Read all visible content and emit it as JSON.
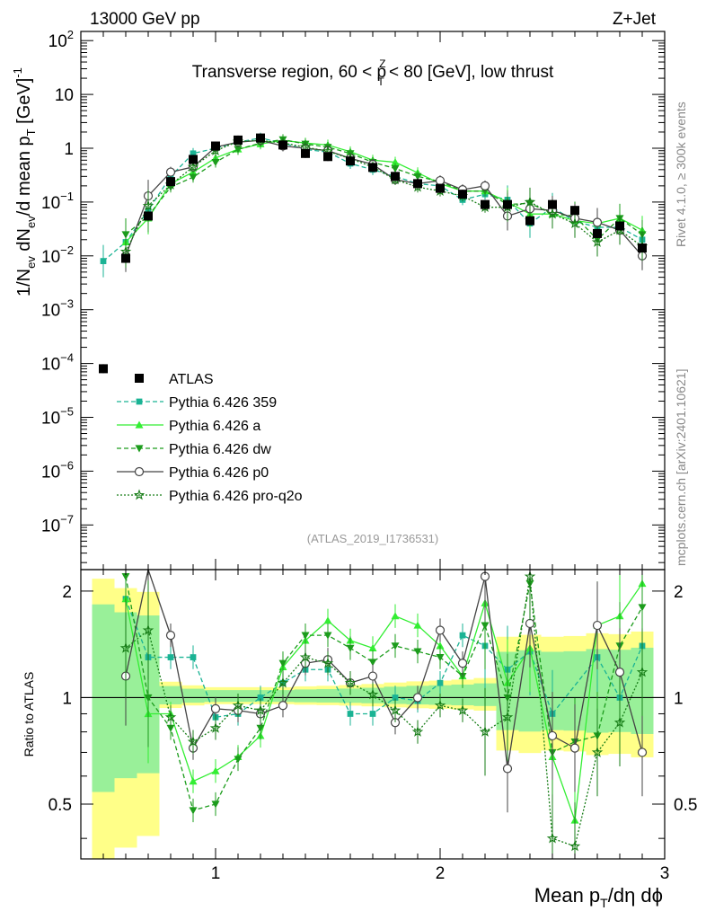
{
  "header": {
    "left": "13000 GeV pp",
    "right": "Z+Jet"
  },
  "chart_data": {
    "type": "line",
    "title": "Transverse region, 60 < p_T^Z < 80 [GeV], low thrust",
    "title_parts": {
      "a": "Transverse region, 60 < p",
      "sup": "Z",
      "sub": "T",
      "b": " < 80 [GeV], low thrust"
    },
    "analysis_id": "(ATLAS_2019_I1736531)",
    "side_label_top": "Rivet 4.1.0, ≥ 300k events",
    "side_label_bottom": "mcplots.cern.ch [arXiv:2401.10621]",
    "xlabel": "Mean p_T/dη dϕ",
    "xlabel_parts": {
      "a": "Mean p",
      "sub": "T",
      "b": "/dη dϕ"
    },
    "ylabel": "1/N_ev dN_ev/d mean p_T [GeV]^-1",
    "ylabel_parts": {
      "a": "1/N",
      "s1": "ev",
      "b": " dN",
      "s2": "ev",
      "c": "/d mean p",
      "s3": "T",
      "d": " [GeV]",
      "sup": "-1"
    },
    "ratio_ylabel": "Ratio to ATLAS",
    "xlim": [
      0.4,
      3.0
    ],
    "ylim_main": [
      2e-08,
      200
    ],
    "ylim_ratio": [
      0.35,
      2.3
    ],
    "x_ticks": [
      1,
      2,
      3
    ],
    "y_ticks": [
      "10^-7",
      "10^-6",
      "10^-5",
      "10^-4",
      "10^-3",
      "10^-2",
      "10^-1",
      "1",
      "10",
      "10^2"
    ],
    "ratio_ticks": [
      "0.5",
      "1",
      "2"
    ],
    "x": [
      0.5,
      0.6,
      0.7,
      0.8,
      0.9,
      1.0,
      1.1,
      1.2,
      1.3,
      1.4,
      1.5,
      1.6,
      1.7,
      1.8,
      1.9,
      2.0,
      2.1,
      2.2,
      2.3,
      2.4,
      2.5,
      2.6,
      2.7,
      2.8,
      2.9
    ],
    "data": {
      "name": "ATLAS",
      "values": [
        8e-05,
        0.009,
        0.055,
        0.24,
        0.62,
        1.1,
        1.42,
        1.55,
        1.15,
        0.8,
        0.7,
        0.58,
        0.44,
        0.3,
        0.22,
        0.18,
        0.14,
        0.09,
        0.09,
        0.045,
        0.09,
        0.07,
        0.026,
        0.036,
        0.014
      ]
    },
    "series": [
      {
        "name": "Pythia 6.426 359",
        "color": "#1ab394",
        "style": "dashed",
        "marker": "square",
        "values": [
          0.008,
          0.018,
          0.07,
          0.3,
          0.8,
          1.0,
          1.3,
          1.55,
          1.25,
          0.95,
          0.85,
          0.52,
          0.4,
          0.3,
          0.22,
          0.2,
          0.11,
          0.14,
          0.11,
          0.04,
          0.08,
          0.044,
          0.034,
          0.034,
          0.02
        ]
      },
      {
        "name": "Pythia 6.426 a",
        "color": "#33ee33",
        "style": "solid",
        "marker": "triangle-up",
        "values": [
          null,
          0.018,
          0.05,
          0.22,
          0.36,
          0.66,
          0.96,
          1.2,
          1.4,
          1.25,
          1.15,
          0.86,
          0.6,
          0.55,
          0.35,
          0.22,
          0.16,
          0.16,
          0.1,
          0.06,
          0.06,
          0.045,
          0.04,
          0.05,
          0.03
        ]
      },
      {
        "name": "Pythia 6.426 dw",
        "color": "#1c9c1c",
        "style": "dashed",
        "marker": "triangle-down",
        "values": [
          null,
          0.025,
          0.055,
          0.19,
          0.29,
          0.55,
          0.95,
          1.25,
          1.45,
          1.2,
          1.05,
          0.8,
          0.55,
          0.42,
          0.3,
          0.24,
          0.16,
          0.16,
          0.09,
          0.095,
          0.06,
          0.055,
          0.02,
          0.05,
          0.025
        ]
      },
      {
        "name": "Pythia 6.426 p0",
        "color": "#444444",
        "style": "solid",
        "marker": "circle-open",
        "values": [
          null,
          0.01,
          0.13,
          0.36,
          0.45,
          1.05,
          1.3,
          1.4,
          1.1,
          1.0,
          0.9,
          0.65,
          0.5,
          0.26,
          0.22,
          0.25,
          0.17,
          0.2,
          0.055,
          0.075,
          0.07,
          0.05,
          0.042,
          0.03,
          0.01
        ]
      },
      {
        "name": "Pythia 6.426 pro-q2o",
        "color": "#177d17",
        "style": "dotted",
        "marker": "star",
        "values": [
          null,
          0.012,
          0.085,
          0.21,
          0.45,
          0.9,
          1.33,
          1.4,
          1.25,
          1.05,
          0.88,
          0.64,
          0.45,
          0.26,
          0.19,
          0.16,
          0.13,
          0.08,
          0.08,
          0.1,
          0.06,
          0.04,
          0.018,
          0.03,
          0.015
        ]
      }
    ],
    "ratios": [
      {
        "name": "Pythia 6.426 359",
        "values": [
          null,
          1.9,
          1.3,
          1.3,
          1.3,
          0.88,
          0.9,
          1.0,
          1.1,
          1.2,
          1.2,
          0.9,
          0.9,
          1.0,
          0.98,
          1.1,
          1.5,
          1.4,
          1.2,
          1.35,
          0.9,
          null,
          1.3,
          1.0,
          1.4
        ]
      },
      {
        "name": "Pythia 6.426 a",
        "values": [
          null,
          1.9,
          0.9,
          0.9,
          0.58,
          0.62,
          0.68,
          0.78,
          1.22,
          1.45,
          1.65,
          1.45,
          1.38,
          1.7,
          1.6,
          1.4,
          1.15,
          1.85,
          1.1,
          1.38,
          0.68,
          0.45,
          1.6,
          1.7,
          2.1
        ]
      },
      {
        "name": "Pythia 6.426 dw",
        "values": [
          null,
          2.2,
          1.0,
          0.82,
          0.48,
          0.5,
          0.67,
          0.82,
          1.25,
          1.5,
          1.5,
          1.38,
          1.26,
          1.4,
          1.35,
          1.3,
          1.15,
          1.6,
          1.0,
          2.1,
          0.7,
          0.75,
          0.78,
          1.4,
          1.8
        ]
      },
      {
        "name": "Pythia 6.426 p0",
        "values": [
          null,
          1.15,
          2.35,
          1.5,
          0.72,
          0.93,
          0.92,
          0.9,
          0.95,
          1.25,
          1.28,
          1.1,
          1.15,
          0.85,
          1.0,
          1.55,
          1.25,
          2.2,
          0.63,
          1.62,
          0.78,
          0.72,
          1.6,
          1.18,
          0.7
        ]
      },
      {
        "name": "Pythia 6.426 pro-q2o",
        "values": [
          null,
          1.38,
          1.55,
          0.88,
          0.75,
          0.82,
          0.95,
          0.92,
          1.1,
          1.3,
          1.25,
          1.1,
          1.02,
          0.92,
          0.8,
          0.95,
          0.92,
          0.8,
          0.88,
          2.2,
          0.4,
          0.38,
          0.7,
          0.85,
          1.18
        ]
      }
    ]
  }
}
